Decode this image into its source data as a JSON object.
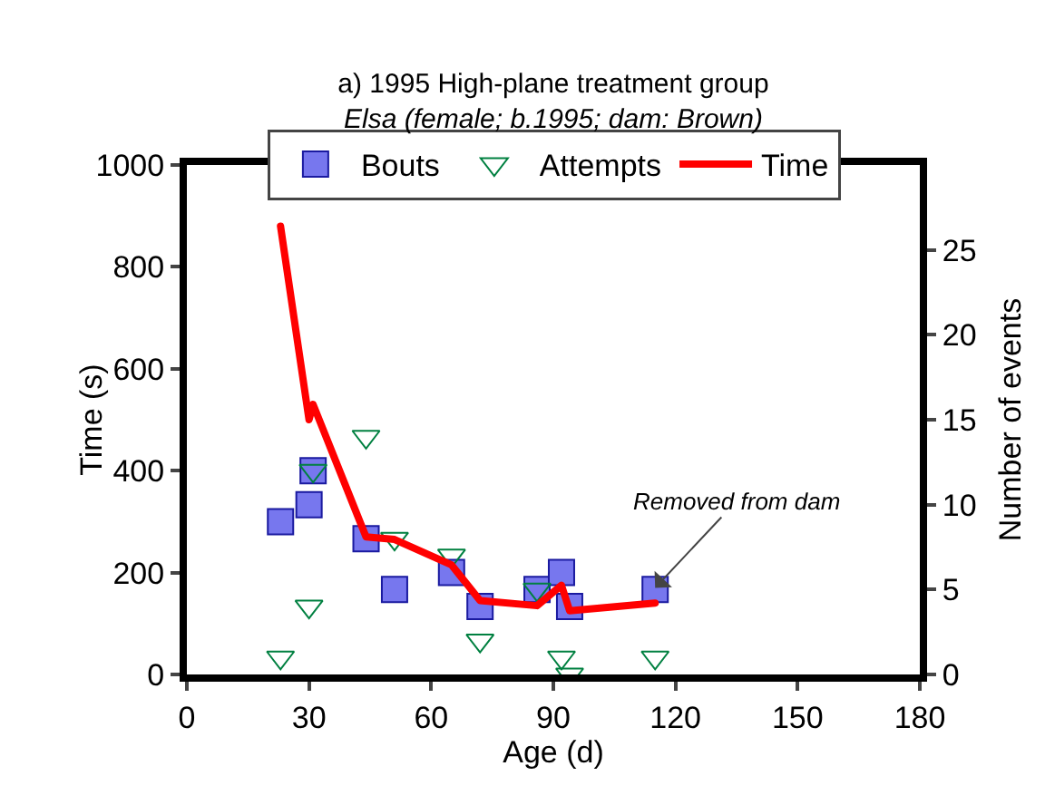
{
  "chart_data": {
    "type": "scatter",
    "title": "a) 1995 High-plane treatment group",
    "subtitle": "Elsa (female; b.1995; dam: Brown)",
    "xlabel": "Age (d)",
    "ylabel": "Time (s)",
    "y2label": "Number of events",
    "xlim": [
      0,
      180
    ],
    "xticks": [
      0,
      30,
      60,
      90,
      120,
      150,
      180
    ],
    "ylim": [
      0,
      1000
    ],
    "yticks": [
      0,
      200,
      400,
      600,
      800,
      1000
    ],
    "y2lim": [
      0,
      30
    ],
    "y2ticks": [
      0,
      5,
      10,
      15,
      20,
      25
    ],
    "grid": false,
    "legend": "top",
    "annotations": [
      {
        "text": "Removed from dam",
        "x": 115,
        "y": 170
      }
    ],
    "series": [
      {
        "name": "Bouts",
        "axis": "y2",
        "marker": "square",
        "color": "#7777ee",
        "x": [
          23,
          30,
          31,
          44,
          51,
          65,
          72,
          86,
          92,
          94,
          115
        ],
        "values": [
          9,
          10,
          12,
          8,
          5,
          6,
          4,
          5,
          6,
          4,
          5
        ]
      },
      {
        "name": "Attempts",
        "axis": "y2",
        "marker": "triangle",
        "color": "#008040",
        "x": [
          23,
          30,
          31,
          44,
          51,
          65,
          72,
          86,
          92,
          94,
          115
        ],
        "values": [
          1,
          4,
          12,
          14,
          8,
          7,
          2,
          5,
          1,
          0,
          1
        ]
      },
      {
        "name": "Time",
        "type": "line",
        "marker": "none",
        "line_style": "solid",
        "color": "#ff0000",
        "x": [
          23,
          30,
          31,
          44,
          51,
          65,
          72,
          86,
          92,
          94,
          115
        ],
        "values": [
          880,
          500,
          530,
          270,
          265,
          215,
          145,
          135,
          175,
          125,
          140
        ]
      }
    ]
  }
}
